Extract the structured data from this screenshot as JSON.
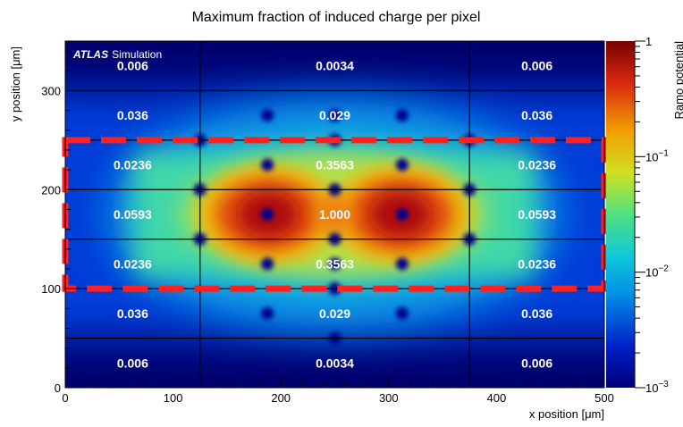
{
  "chart_data": {
    "type": "heatmap",
    "title": "Maximum fraction of induced charge per pixel",
    "xlabel": "x position [μm]",
    "ylabel": "y position [μm]",
    "zlabel": "Ramo potential",
    "label_bold": "ATLAS",
    "label_text": "Simulation",
    "xlim": [
      0,
      500
    ],
    "ylim": [
      0,
      350
    ],
    "z_scale": "log",
    "zlim": [
      0.001,
      1
    ],
    "x_ticks": [
      "0",
      "100",
      "200",
      "300",
      "400",
      "500"
    ],
    "y_ticks": [
      "0",
      "100",
      "200",
      "300"
    ],
    "z_ticks": [
      "1",
      "10",
      "10",
      "10"
    ],
    "z_tick_exps": [
      "",
      "−1",
      "−2",
      "−3"
    ],
    "x_edges": [
      0,
      125,
      375,
      500
    ],
    "y_edges": [
      0,
      50,
      100,
      150,
      200,
      250,
      300,
      350
    ],
    "cell_values": [
      [
        "0.006",
        "0.0034",
        "0.006"
      ],
      [
        "0.036",
        "0.029",
        "0.036"
      ],
      [
        "0.0236",
        "0.3563",
        "0.0236"
      ],
      [
        "0.0593",
        "1.000",
        "0.0593"
      ],
      [
        "0.0236",
        "0.3563",
        "0.0236"
      ],
      [
        "0.036",
        "0.029",
        "0.036"
      ],
      [
        "0.006",
        "0.0034",
        "0.006"
      ]
    ],
    "highlight_region": {
      "x": [
        0,
        500
      ],
      "y": [
        100,
        250
      ],
      "color": "#ff2020",
      "style": "dashed"
    }
  }
}
